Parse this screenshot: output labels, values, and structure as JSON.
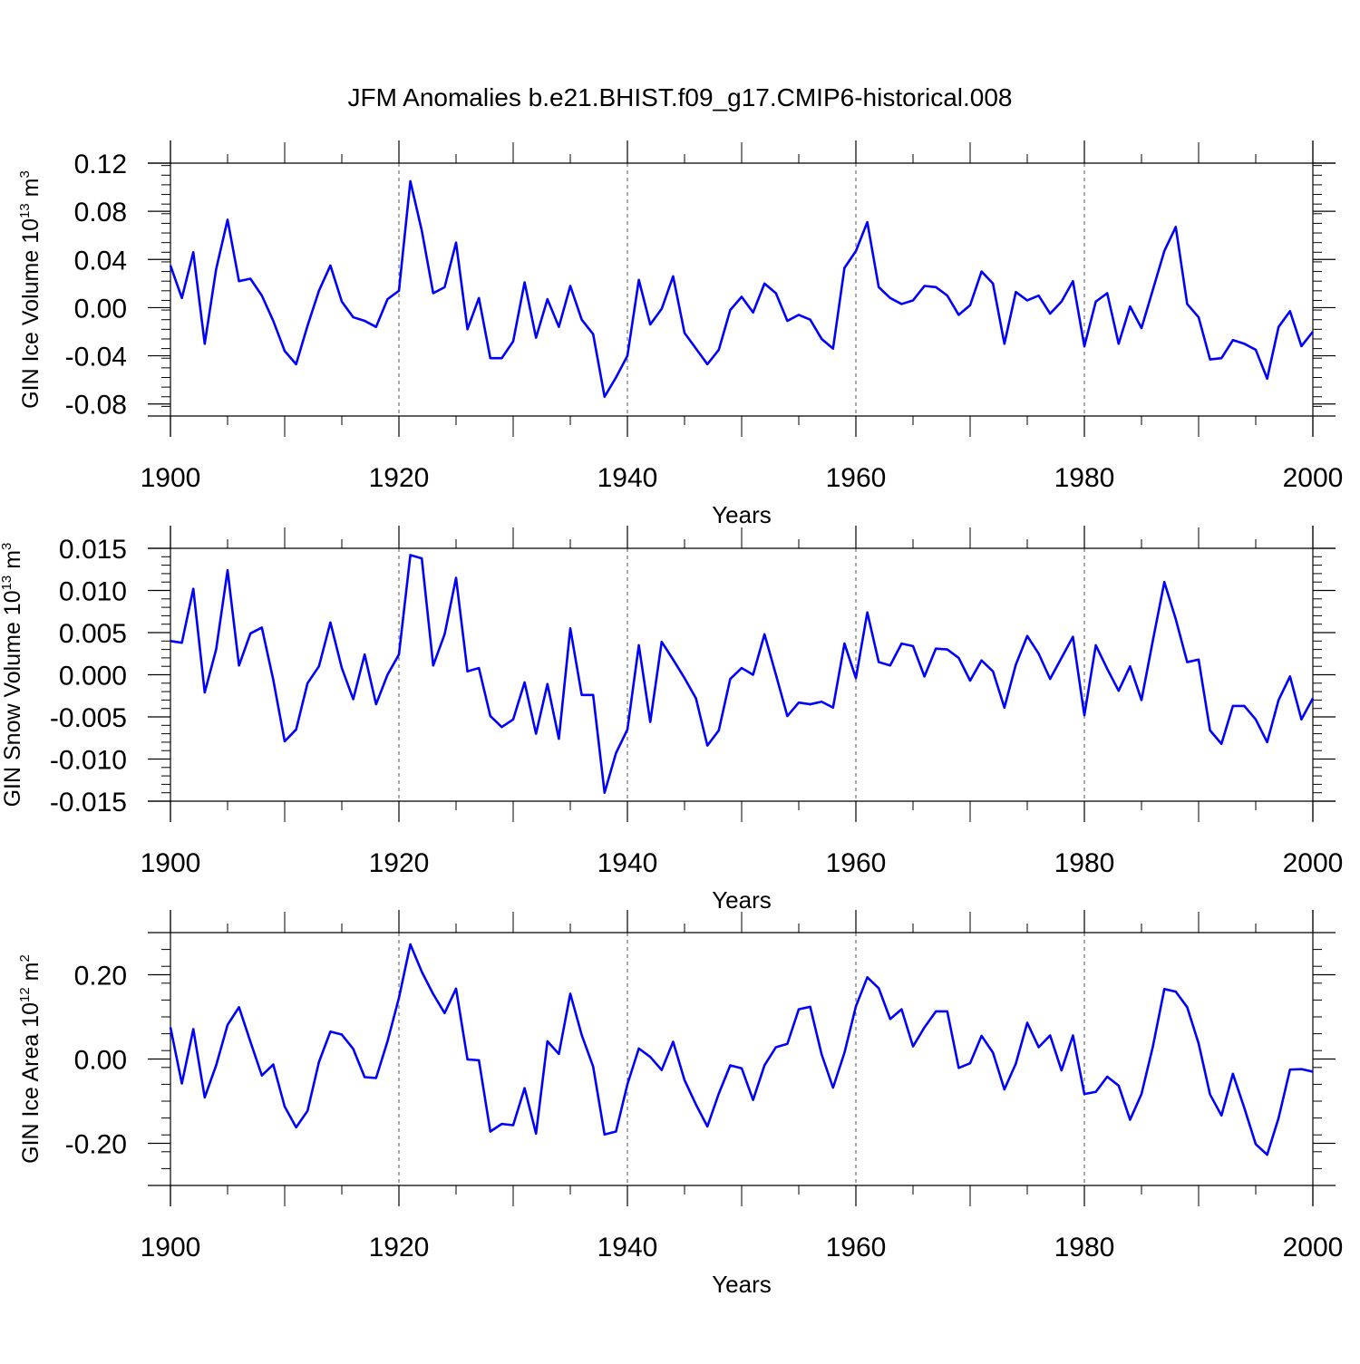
{
  "figure_title": "JFM Anomalies b.e21.BHIST.f09_g17.CMIP6-historical.008",
  "colors": {
    "line": "#0000ff",
    "axis": "#000000",
    "grid": "#555555"
  },
  "chart_data": [
    {
      "type": "line",
      "name": "GIN Ice Volume",
      "ylabel_main": "GIN Ice Volume 10",
      "ylabel_sup": "13",
      "ylabel_unit": " m",
      "ylabel_unit_sup": "3",
      "xlabel": "Years",
      "xlim": [
        1900,
        2000
      ],
      "ylim": [
        -0.09,
        0.12
      ],
      "yticks": [
        0.12,
        0.08,
        0.04,
        0.0,
        -0.04,
        -0.08
      ],
      "ytick_labels": [
        "0.12",
        "0.08",
        "0.04",
        "0.00",
        "-0.04",
        "-0.08"
      ],
      "xticks": [
        1900,
        1920,
        1940,
        1960,
        1980,
        2000
      ],
      "xtick_labels": [
        "1900",
        "1920",
        "1940",
        "1960",
        "1980",
        "2000"
      ],
      "x_start": 1900,
      "values": [
        0.035,
        0.008,
        0.046,
        -0.03,
        0.032,
        0.073,
        0.022,
        0.024,
        0.01,
        -0.011,
        -0.036,
        -0.047,
        -0.015,
        0.014,
        0.035,
        0.005,
        -0.008,
        -0.011,
        -0.016,
        0.007,
        0.014,
        0.105,
        0.064,
        0.012,
        0.017,
        0.054,
        -0.018,
        0.008,
        -0.042,
        -0.042,
        -0.028,
        0.021,
        -0.025,
        0.007,
        -0.016,
        0.018,
        -0.01,
        -0.022,
        -0.074,
        -0.058,
        -0.04,
        0.023,
        -0.014,
        -0.001,
        0.026,
        -0.021,
        -0.034,
        -0.047,
        -0.035,
        -0.002,
        0.009,
        -0.004,
        0.02,
        0.012,
        -0.011,
        -0.006,
        -0.01,
        -0.026,
        -0.034,
        0.033,
        0.047,
        0.071,
        0.017,
        0.008,
        0.003,
        0.006,
        0.018,
        0.017,
        0.01,
        -0.006,
        0.002,
        0.03,
        0.02,
        -0.03,
        0.013,
        0.006,
        0.01,
        -0.005,
        0.005,
        0.022,
        -0.032,
        0.005,
        0.012,
        -0.03,
        0.001,
        -0.017,
        0.015,
        0.047,
        0.067,
        0.003,
        -0.008,
        -0.043,
        -0.042,
        -0.027,
        -0.03,
        -0.035,
        -0.059,
        -0.016,
        -0.003,
        -0.032,
        -0.02
      ]
    },
    {
      "type": "line",
      "name": "GIN Snow Volume",
      "ylabel_main": "GIN Snow Volume 10",
      "ylabel_sup": "13",
      "ylabel_unit": " m",
      "ylabel_unit_sup": "3",
      "xlabel": "Years",
      "xlim": [
        1900,
        2000
      ],
      "ylim": [
        -0.015,
        0.015
      ],
      "yticks": [
        0.015,
        0.01,
        0.005,
        0.0,
        -0.005,
        -0.01,
        -0.015
      ],
      "ytick_labels": [
        "0.015",
        "0.010",
        "0.005",
        "0.000",
        "-0.005",
        "-0.010",
        "-0.015"
      ],
      "xticks": [
        1900,
        1920,
        1940,
        1960,
        1980,
        2000
      ],
      "xtick_labels": [
        "1900",
        "1920",
        "1940",
        "1960",
        "1980",
        "2000"
      ],
      "x_start": 1900,
      "values": [
        0.004,
        0.0038,
        0.0102,
        -0.0021,
        0.003,
        0.0124,
        0.0011,
        0.0049,
        0.0056,
        -0.0006,
        -0.0079,
        -0.0065,
        -0.001,
        0.001,
        0.0062,
        0.0008,
        -0.0029,
        0.0024,
        -0.0035,
        0.0,
        0.0024,
        0.0142,
        0.0138,
        0.0011,
        0.0048,
        0.0115,
        0.0004,
        0.0008,
        -0.0049,
        -0.0062,
        -0.0053,
        -0.0009,
        -0.007,
        -0.0011,
        -0.0076,
        0.0055,
        -0.0024,
        -0.0024,
        -0.014,
        -0.0093,
        -0.0065,
        0.0035,
        -0.0056,
        0.0039,
        0.0018,
        -0.0004,
        -0.0028,
        -0.0084,
        -0.0066,
        -0.0005,
        0.0008,
        0.0,
        0.0048,
        0.0,
        -0.0049,
        -0.0033,
        -0.0035,
        -0.0032,
        -0.0039,
        0.0037,
        -0.0004,
        0.0074,
        0.0015,
        0.0011,
        0.0037,
        0.0034,
        -0.0002,
        0.0031,
        0.003,
        0.002,
        -0.0007,
        0.0017,
        0.0004,
        -0.0039,
        0.0012,
        0.0046,
        0.0025,
        -0.0005,
        0.002,
        0.0045,
        -0.0048,
        0.0035,
        0.0007,
        -0.0019,
        0.001,
        -0.003,
        0.0041,
        0.011,
        0.0066,
        0.0015,
        0.0018,
        -0.0066,
        -0.0082,
        -0.0037,
        -0.0037,
        -0.0053,
        -0.008,
        -0.003,
        -0.0002,
        -0.0053,
        -0.0028
      ]
    },
    {
      "type": "line",
      "name": "GIN Ice Area",
      "ylabel_main": "GIN Ice Area 10",
      "ylabel_sup": "12",
      "ylabel_unit": " m",
      "ylabel_unit_sup": "2",
      "xlabel": "Years",
      "xlim": [
        1900,
        2000
      ],
      "ylim": [
        -0.3,
        0.3
      ],
      "yticks": [
        0.2,
        0.0,
        -0.2
      ],
      "ytick_labels": [
        "0.20",
        "0.00",
        "-0.20"
      ],
      "xticks": [
        1900,
        1920,
        1940,
        1960,
        1980,
        2000
      ],
      "xtick_labels": [
        "1900",
        "1920",
        "1940",
        "1960",
        "1980",
        "2000"
      ],
      "x_start": 1900,
      "values": [
        0.075,
        -0.058,
        0.071,
        -0.091,
        -0.015,
        0.081,
        0.123,
        0.041,
        -0.039,
        -0.013,
        -0.113,
        -0.162,
        -0.123,
        -0.007,
        0.065,
        0.058,
        0.024,
        -0.043,
        -0.045,
        0.042,
        0.145,
        0.272,
        0.207,
        0.154,
        0.109,
        0.167,
        -0.001,
        -0.003,
        -0.172,
        -0.154,
        -0.157,
        -0.069,
        -0.177,
        0.042,
        0.012,
        0.155,
        0.057,
        -0.018,
        -0.179,
        -0.172,
        -0.06,
        0.025,
        0.005,
        -0.026,
        0.041,
        -0.05,
        -0.108,
        -0.16,
        -0.082,
        -0.015,
        -0.022,
        -0.097,
        -0.015,
        0.028,
        0.036,
        0.118,
        0.124,
        0.011,
        -0.068,
        0.015,
        0.125,
        0.194,
        0.168,
        0.095,
        0.118,
        0.03,
        0.075,
        0.113,
        0.113,
        -0.021,
        -0.01,
        0.055,
        0.015,
        -0.072,
        -0.011,
        0.086,
        0.028,
        0.056,
        -0.027,
        0.056,
        -0.083,
        -0.078,
        -0.042,
        -0.063,
        -0.144,
        -0.083,
        0.03,
        0.166,
        0.16,
        0.123,
        0.037,
        -0.084,
        -0.134,
        -0.035,
        -0.116,
        -0.202,
        -0.227,
        -0.14,
        -0.025,
        -0.024,
        -0.03
      ]
    }
  ]
}
